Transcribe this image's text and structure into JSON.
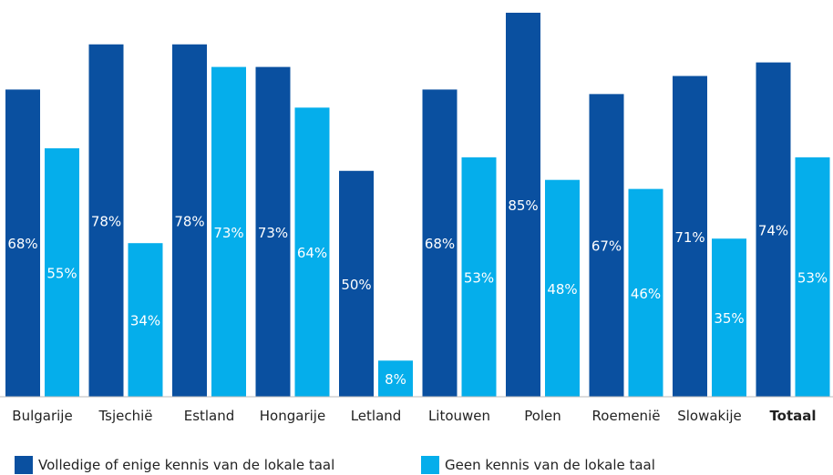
{
  "chart_data": {
    "type": "bar",
    "categories": [
      "Bulgarije",
      "Tsjechië",
      "Estland",
      "Hongarije",
      "Letland",
      "Litouwen",
      "Polen",
      "Roemenië",
      "Slowakije",
      "Totaal"
    ],
    "bold_categories": [
      "Totaal"
    ],
    "series": [
      {
        "name": "Volledige of enige kennis van de lokale taal",
        "color": "#0a50a0",
        "values": [
          68,
          78,
          78,
          73,
          50,
          68,
          85,
          67,
          71,
          74
        ]
      },
      {
        "name": "Geen kennis van de lokale taal",
        "color": "#05aeeb",
        "values": [
          55,
          34,
          73,
          64,
          8,
          53,
          48,
          46,
          35,
          53
        ]
      }
    ],
    "value_suffix": "%",
    "ylim": [
      0,
      85
    ],
    "grid": false,
    "legend_position": "bottom"
  }
}
